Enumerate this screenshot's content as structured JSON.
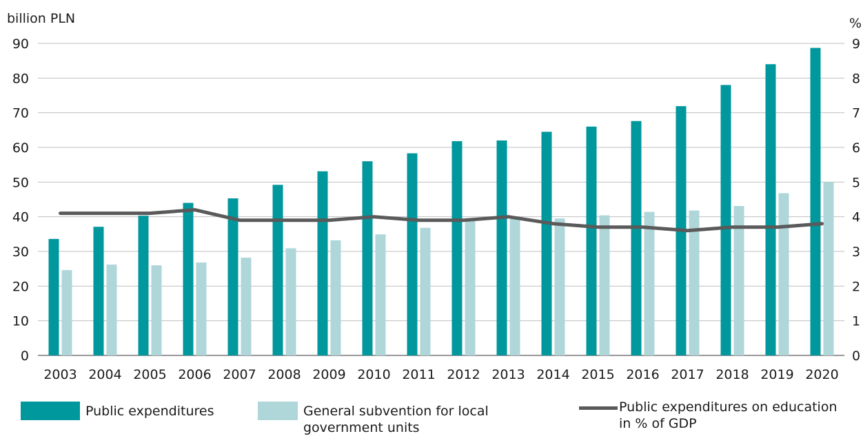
{
  "chart_data": {
    "type": "bar",
    "title": "",
    "ylabel_left": "billion PLN",
    "ylabel_right": "%",
    "ylim_left": [
      0,
      90
    ],
    "ylim_right": [
      0,
      9
    ],
    "yticks_left": [
      "0",
      "10",
      "20",
      "30",
      "40",
      "50",
      "60",
      "70",
      "80",
      "90"
    ],
    "yticks_right": [
      "0",
      "1",
      "2",
      "3",
      "4",
      "5",
      "6",
      "7",
      "8",
      "9"
    ],
    "grid": "horizontal",
    "legend_position": "bottom",
    "categories": [
      "2003",
      "2004",
      "2005",
      "2006",
      "2007",
      "2008",
      "2009",
      "2010",
      "2011",
      "2012",
      "2013",
      "2014",
      "2015",
      "2016",
      "2017",
      "2018",
      "2019",
      "2020"
    ],
    "series": [
      {
        "name": "Public expenditures",
        "type": "bar",
        "axis": "left",
        "color": "#00979d",
        "values": [
          33.6,
          37.1,
          40.3,
          44.0,
          45.3,
          49.2,
          53.1,
          56.0,
          58.3,
          61.8,
          62.0,
          64.5,
          66.0,
          67.6,
          71.9,
          78.0,
          84.0,
          88.7
        ]
      },
      {
        "name": "General subvention for local government units",
        "type": "bar",
        "axis": "left",
        "color": "#afd6d9",
        "values": [
          24.6,
          26.2,
          26.0,
          26.8,
          28.2,
          30.9,
          33.2,
          34.9,
          36.8,
          39.0,
          39.4,
          39.5,
          40.4,
          41.4,
          41.8,
          43.1,
          46.8,
          50.0
        ]
      },
      {
        "name": "Public expenditures on education in % of GDP",
        "type": "line",
        "axis": "right",
        "color": "#5a5a5a",
        "values": [
          4.1,
          4.1,
          4.1,
          4.2,
          3.9,
          3.9,
          3.9,
          4.0,
          3.9,
          3.9,
          4.0,
          3.8,
          3.7,
          3.7,
          3.6,
          3.7,
          3.7,
          3.8
        ]
      }
    ]
  }
}
